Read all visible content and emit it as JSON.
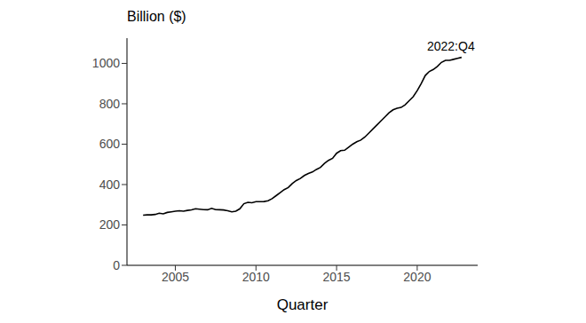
{
  "chart_data": {
    "type": "line",
    "x_label": "Quarter",
    "y_label": "Billion ($)",
    "x": [
      2003,
      2003.25,
      2003.5,
      2003.75,
      2004,
      2004.25,
      2004.5,
      2004.75,
      2005,
      2005.25,
      2005.5,
      2005.75,
      2006,
      2006.25,
      2006.5,
      2006.75,
      2007,
      2007.25,
      2007.5,
      2007.75,
      2008,
      2008.25,
      2008.5,
      2008.75,
      2009,
      2009.25,
      2009.5,
      2009.75,
      2010,
      2010.25,
      2010.5,
      2010.75,
      2011,
      2011.25,
      2011.5,
      2011.75,
      2012,
      2012.25,
      2012.5,
      2012.75,
      2013,
      2013.25,
      2013.5,
      2013.75,
      2014,
      2014.25,
      2014.5,
      2014.75,
      2015,
      2015.25,
      2015.5,
      2015.75,
      2016,
      2016.25,
      2016.5,
      2016.75,
      2017,
      2017.25,
      2017.5,
      2017.75,
      2018,
      2018.25,
      2018.5,
      2018.75,
      2019,
      2019.25,
      2019.5,
      2019.75,
      2020,
      2020.25,
      2020.5,
      2020.75,
      2021,
      2021.25,
      2021.5,
      2021.75,
      2022,
      2022.25,
      2022.5,
      2022.75
    ],
    "values": [
      248,
      250,
      250,
      252,
      258,
      255,
      262,
      265,
      268,
      270,
      268,
      272,
      275,
      280,
      278,
      276,
      275,
      282,
      276,
      275,
      274,
      270,
      265,
      268,
      280,
      305,
      312,
      310,
      315,
      315,
      316,
      320,
      330,
      345,
      360,
      375,
      385,
      405,
      420,
      430,
      445,
      455,
      462,
      475,
      485,
      505,
      520,
      530,
      555,
      568,
      570,
      585,
      600,
      612,
      620,
      635,
      655,
      675,
      695,
      715,
      735,
      755,
      770,
      778,
      782,
      795,
      815,
      835,
      865,
      900,
      940,
      960,
      970,
      985,
      1005,
      1015,
      1015,
      1020,
      1025,
      1030
    ],
    "color": "#000000",
    "xlim": [
      2002,
      2023.75
    ],
    "xticks": [
      2005,
      2010,
      2015,
      2020
    ],
    "ylim": [
      0,
      1125
    ],
    "yticks": [
      0,
      200,
      400,
      600,
      800,
      1000
    ],
    "grid": false,
    "annotations": [
      {
        "text": "2022:Q4",
        "x": 2022.75,
        "y": 1030
      }
    ]
  }
}
